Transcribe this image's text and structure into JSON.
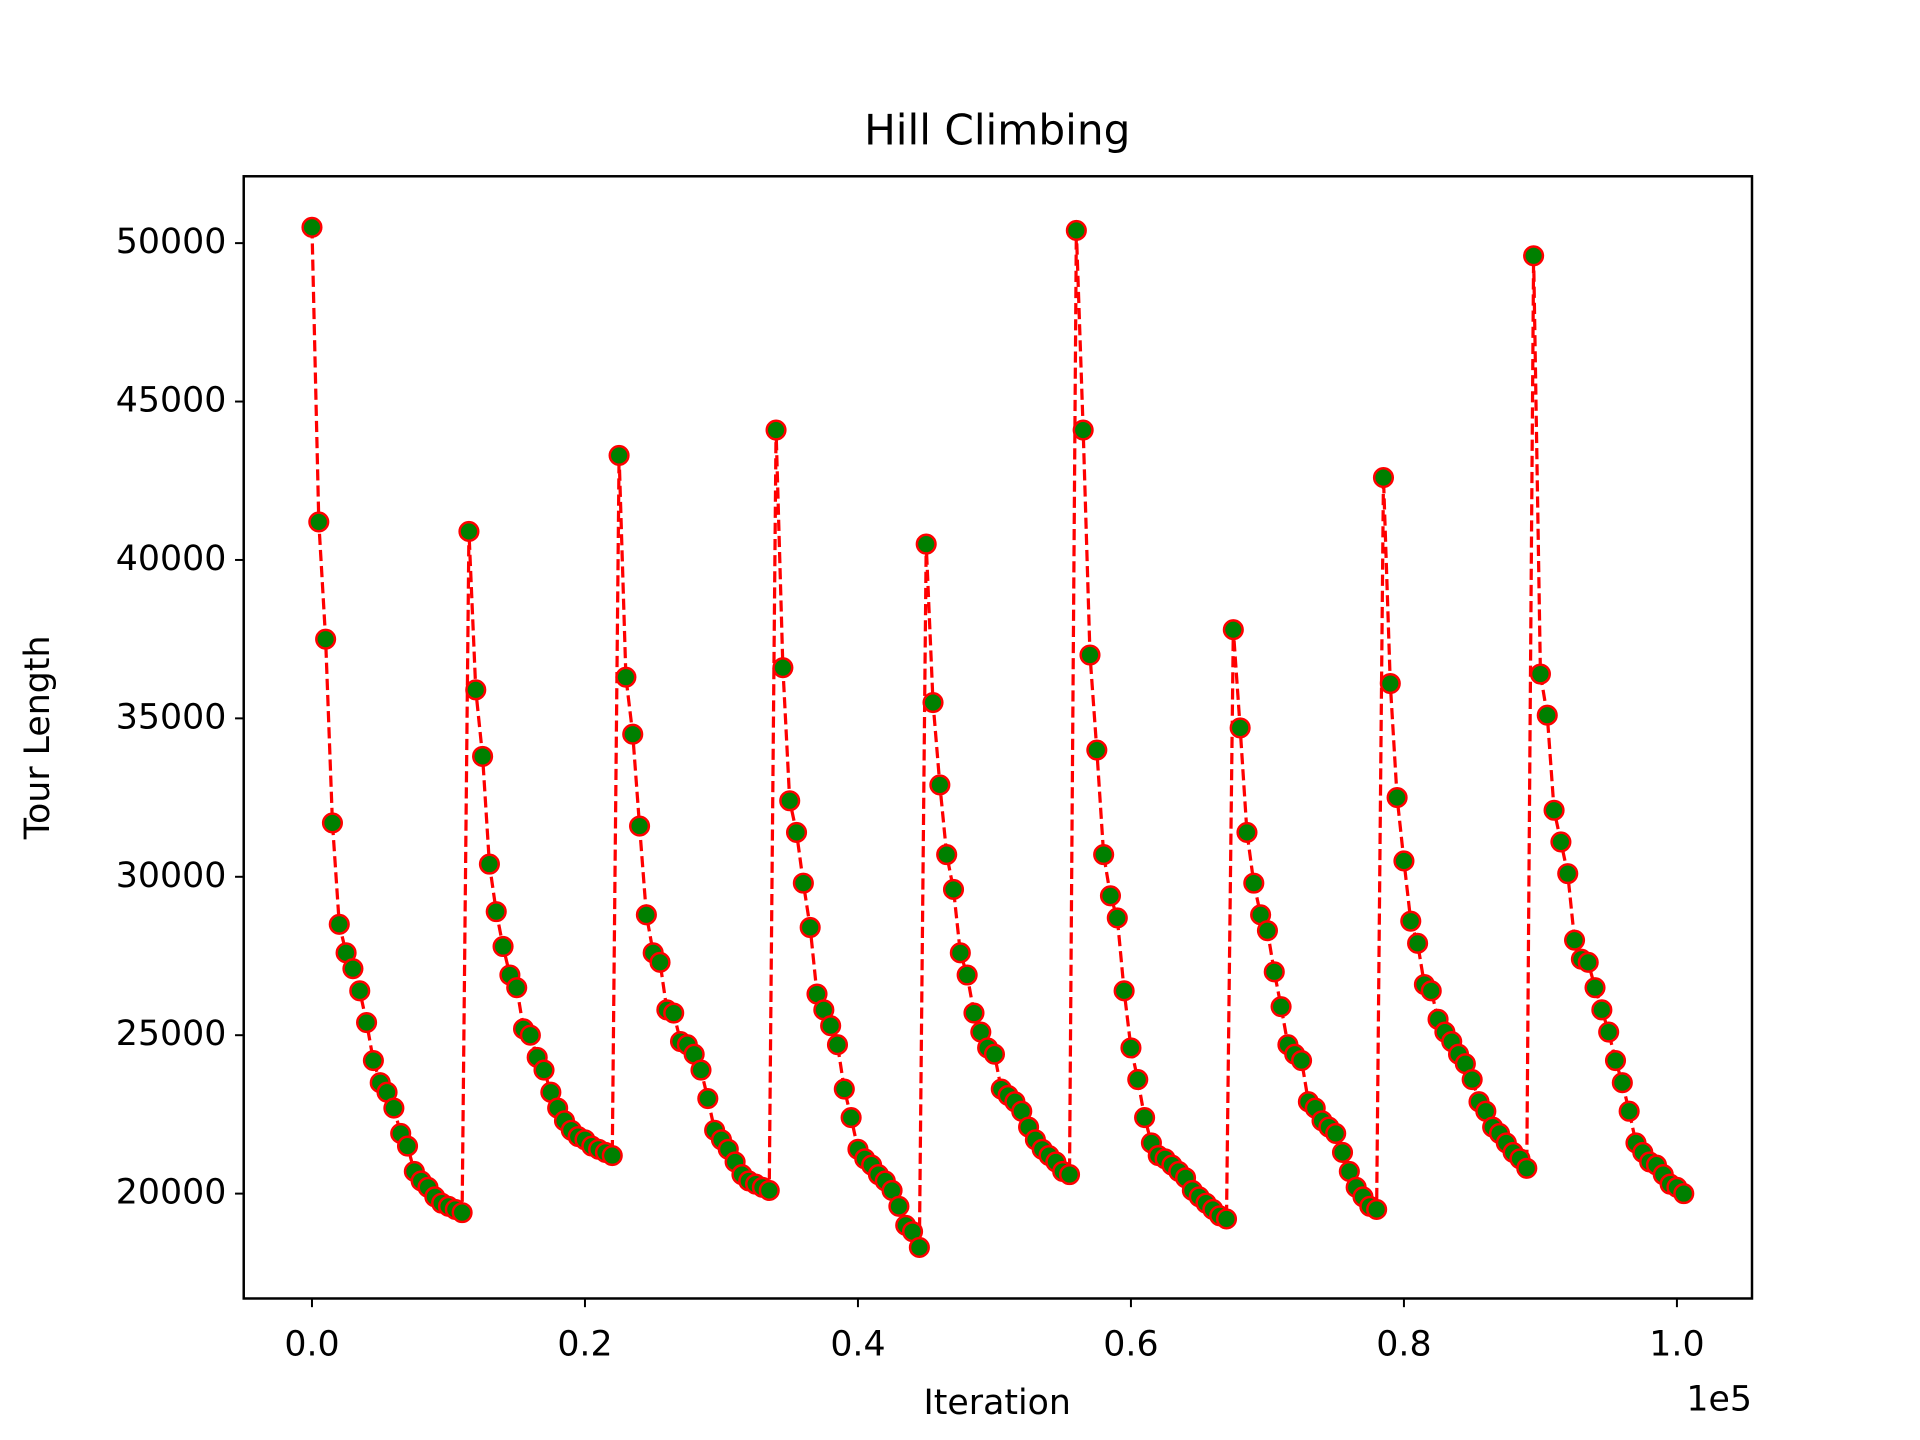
{
  "chart_data": {
    "type": "line",
    "title": "Hill Climbing",
    "x_label": "Iteration",
    "y_label": "Tour Length",
    "x_offset_label": "1e5",
    "x": [
      0,
      500,
      1000,
      1500,
      2000,
      2500,
      3000,
      3500,
      4000,
      4500,
      5000,
      5500,
      6000,
      6500,
      7000,
      7500,
      8000,
      8500,
      9000,
      9500,
      10000,
      10500,
      11000,
      11500,
      12000,
      12500,
      13000,
      13500,
      14000,
      14500,
      15000,
      15500,
      16000,
      16500,
      17000,
      17500,
      18000,
      18500,
      19000,
      19500,
      20000,
      20500,
      21000,
      21500,
      22000,
      22500,
      23000,
      23500,
      24000,
      24500,
      25000,
      25500,
      26000,
      26500,
      27000,
      27500,
      28000,
      28500,
      29000,
      29500,
      30000,
      30500,
      31000,
      31500,
      32000,
      32500,
      33000,
      33500,
      34000,
      34500,
      35000,
      35500,
      36000,
      36500,
      37000,
      37500,
      38000,
      38500,
      39000,
      39500,
      40000,
      40500,
      41000,
      41500,
      42000,
      42500,
      43000,
      43500,
      44000,
      44500,
      45000,
      45500,
      46000,
      46500,
      47000,
      47500,
      48000,
      48500,
      49000,
      49500,
      50000,
      50500,
      51000,
      51500,
      52000,
      52500,
      53000,
      53500,
      54000,
      54500,
      55000,
      55500,
      56000,
      56500,
      57000,
      57500,
      58000,
      58500,
      59000,
      59500,
      60000,
      60500,
      61000,
      61500,
      62000,
      62500,
      63000,
      63500,
      64000,
      64500,
      65000,
      65500,
      66000,
      66500,
      67000,
      67500,
      68000,
      68500,
      69000,
      69500,
      70000,
      70500,
      71000,
      71500,
      72000,
      72500,
      73000,
      73500,
      74000,
      74500,
      75000,
      75500,
      76000,
      76500,
      77000,
      77500,
      78000,
      78500,
      79000,
      79500,
      80000,
      80500,
      81000,
      81500,
      82000,
      82500,
      83000,
      83500,
      84000,
      84500,
      85000,
      85500,
      86000,
      86500,
      87000,
      87500,
      88000,
      88500,
      89000,
      89500,
      90000,
      90500,
      91000,
      91500,
      92000,
      92500,
      93000,
      93500,
      94000,
      94500,
      95000,
      95500,
      96000,
      96500,
      97000,
      97500,
      98000,
      98500,
      99000,
      99500,
      100000,
      100500
    ],
    "series": [
      {
        "color": "#ff0000",
        "marker_color": "#008000",
        "line_style": "dashed",
        "values": [
          50500,
          41200,
          37500,
          31700,
          28500,
          27600,
          27100,
          26400,
          25400,
          24200,
          23500,
          23200,
          22700,
          21900,
          21500,
          20700,
          20400,
          20200,
          19900,
          19700,
          19600,
          19500,
          19400,
          40900,
          35900,
          33800,
          30400,
          28900,
          27800,
          26900,
          26500,
          25200,
          25000,
          24300,
          23900,
          23200,
          22700,
          22300,
          22000,
          21800,
          21700,
          21500,
          21400,
          21300,
          21200,
          43300,
          36300,
          34500,
          31600,
          28800,
          27600,
          27300,
          25800,
          25700,
          24800,
          24700,
          24400,
          23900,
          23000,
          22000,
          21700,
          21400,
          21000,
          20600,
          20400,
          20300,
          20200,
          20100,
          44100,
          36600,
          32400,
          31400,
          29800,
          28400,
          26300,
          25800,
          25300,
          24700,
          23300,
          22400,
          21400,
          21100,
          20900,
          20600,
          20400,
          20100,
          19600,
          19000,
          18800,
          18300,
          40500,
          35500,
          32900,
          30700,
          29600,
          27600,
          26900,
          25700,
          25100,
          24600,
          24400,
          23300,
          23100,
          22900,
          22600,
          22100,
          21700,
          21400,
          21200,
          21000,
          20700,
          20600,
          50400,
          44100,
          37000,
          34000,
          30700,
          29400,
          28700,
          26400,
          24600,
          23600,
          22400,
          21600,
          21200,
          21100,
          20900,
          20700,
          20500,
          20100,
          19900,
          19700,
          19500,
          19300,
          19200,
          37800,
          34700,
          31400,
          29800,
          28800,
          28300,
          27000,
          25900,
          24700,
          24400,
          24200,
          22900,
          22700,
          22300,
          22100,
          21900,
          21300,
          20700,
          20200,
          19900,
          19600,
          19500,
          42600,
          36100,
          32500,
          30500,
          28600,
          27900,
          26600,
          26400,
          25500,
          25100,
          24800,
          24400,
          24100,
          23600,
          22900,
          22600,
          22100,
          21900,
          21600,
          21300,
          21100,
          20800,
          49600,
          36400,
          35100,
          32100,
          31100,
          30100,
          28000,
          27400,
          27300,
          26500,
          25800,
          25100,
          24200,
          23500,
          22600,
          21600,
          21300,
          21000,
          20900,
          20600,
          20300,
          20200,
          20000
        ]
      }
    ],
    "xlim": [
      -5000,
      105500
    ],
    "ylim": [
      16690,
      52110
    ],
    "xticks": [
      {
        "value": 0,
        "label": "0.0"
      },
      {
        "value": 20000,
        "label": "0.2"
      },
      {
        "value": 40000,
        "label": "0.4"
      },
      {
        "value": 60000,
        "label": "0.6"
      },
      {
        "value": 80000,
        "label": "0.8"
      },
      {
        "value": 100000,
        "label": "1.0"
      }
    ],
    "yticks": [
      20000,
      25000,
      30000,
      35000,
      40000,
      45000,
      50000
    ],
    "grid": false
  }
}
